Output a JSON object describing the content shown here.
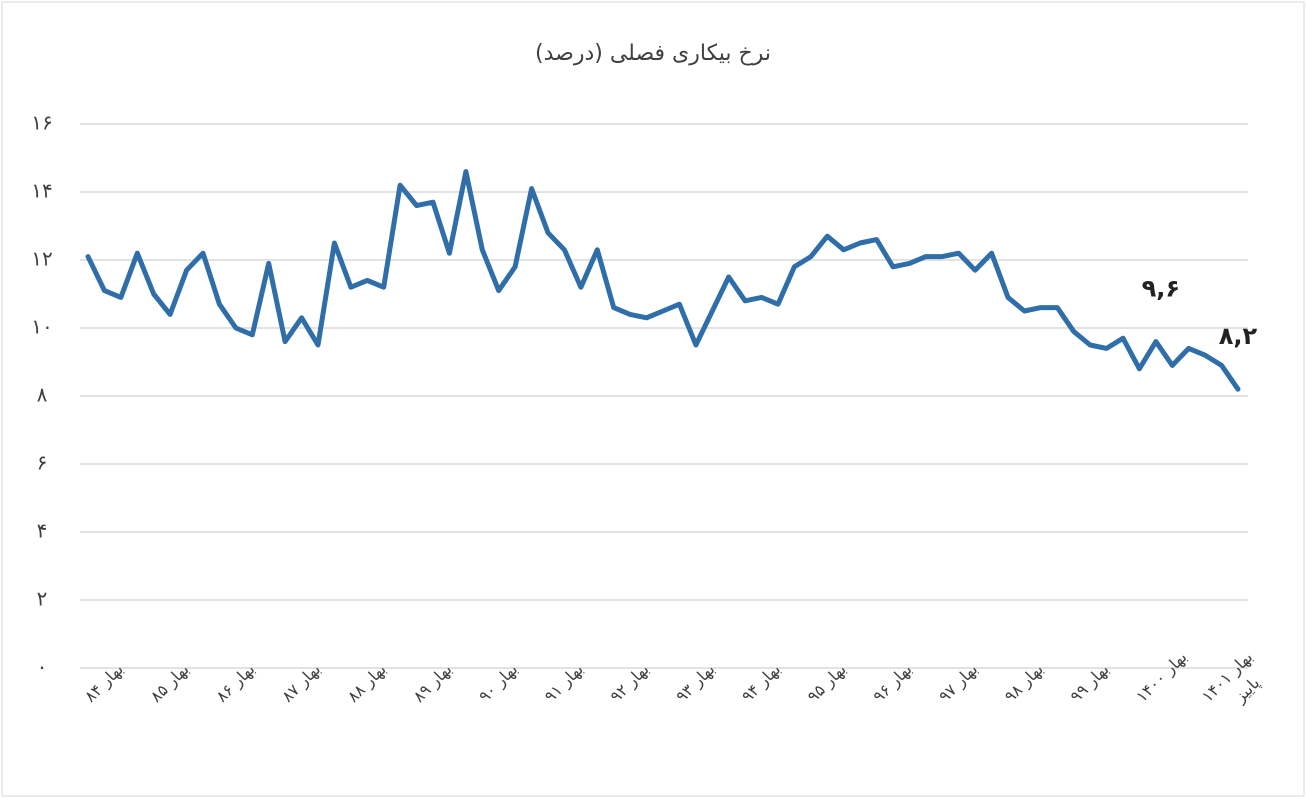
{
  "chart_data": {
    "type": "line",
    "title": "نرخ بیکاری فصلی (درصد)",
    "categories": [
      "بهار ۸۴",
      null,
      null,
      null,
      "بهار ۸۵",
      null,
      null,
      null,
      "بهار ۸۶",
      null,
      null,
      null,
      "بهار ۸۷",
      null,
      null,
      null,
      "بهار ۸۸",
      null,
      null,
      null,
      "بهار ۸۹",
      null,
      null,
      null,
      "بهار ۹۰",
      null,
      null,
      null,
      "بهار ۹۱",
      null,
      null,
      null,
      "بهار ۹۲",
      null,
      null,
      null,
      "بهار ۹۳",
      null,
      null,
      null,
      "بهار ۹۴",
      null,
      null,
      null,
      "بهار ۹۵",
      null,
      null,
      null,
      "بهار ۹۶",
      null,
      null,
      null,
      "بهار ۹۷",
      null,
      null,
      null,
      "بهار ۹۸",
      null,
      null,
      null,
      "بهار ۹۹",
      null,
      null,
      null,
      "بهار ۱۴۰۰",
      null,
      null,
      null,
      "بهار ۱۴۰۱",
      null,
      "پاییز"
    ],
    "values": [
      12.1,
      11.1,
      10.9,
      12.2,
      11.0,
      10.4,
      11.7,
      12.2,
      10.7,
      10.0,
      9.8,
      11.9,
      9.6,
      10.3,
      9.5,
      12.5,
      11.2,
      11.4,
      11.2,
      14.2,
      13.6,
      13.7,
      12.2,
      14.6,
      12.3,
      11.1,
      11.8,
      14.1,
      12.8,
      12.3,
      11.2,
      12.3,
      10.6,
      10.4,
      10.3,
      10.5,
      10.7,
      9.5,
      10.5,
      11.5,
      10.8,
      10.9,
      10.7,
      11.8,
      12.1,
      12.7,
      12.3,
      12.5,
      12.6,
      11.8,
      11.9,
      12.1,
      12.1,
      12.2,
      11.7,
      12.2,
      10.9,
      10.5,
      10.6,
      10.6,
      9.9,
      9.5,
      9.4,
      9.7,
      8.8,
      9.6,
      8.9,
      9.4,
      9.2,
      8.9,
      8.2
    ],
    "value_labels": [
      null,
      null,
      null,
      null,
      null,
      null,
      null,
      null,
      null,
      null,
      null,
      null,
      null,
      null,
      null,
      null,
      null,
      null,
      null,
      null,
      null,
      null,
      null,
      null,
      null,
      null,
      null,
      null,
      null,
      null,
      null,
      null,
      null,
      null,
      null,
      null,
      null,
      null,
      null,
      null,
      null,
      null,
      null,
      null,
      null,
      null,
      null,
      null,
      null,
      null,
      null,
      null,
      null,
      null,
      null,
      null,
      null,
      null,
      null,
      null,
      null,
      null,
      null,
      null,
      null,
      "۹,۶",
      null,
      null,
      null,
      null,
      "۸,۲"
    ],
    "color": "#2f6ea8",
    "ylim": [
      0,
      16
    ],
    "yticks": [
      {
        "value": 0,
        "label": "۰"
      },
      {
        "value": 2,
        "label": "۲"
      },
      {
        "value": 4,
        "label": "۴"
      },
      {
        "value": 6,
        "label": "۶"
      },
      {
        "value": 8,
        "label": "۸"
      },
      {
        "value": 10,
        "label": "۱۰"
      },
      {
        "value": 12,
        "label": "۱۲"
      },
      {
        "value": 14,
        "label": "۱۴"
      },
      {
        "value": 16,
        "label": "۱۶"
      }
    ],
    "grid": true
  }
}
